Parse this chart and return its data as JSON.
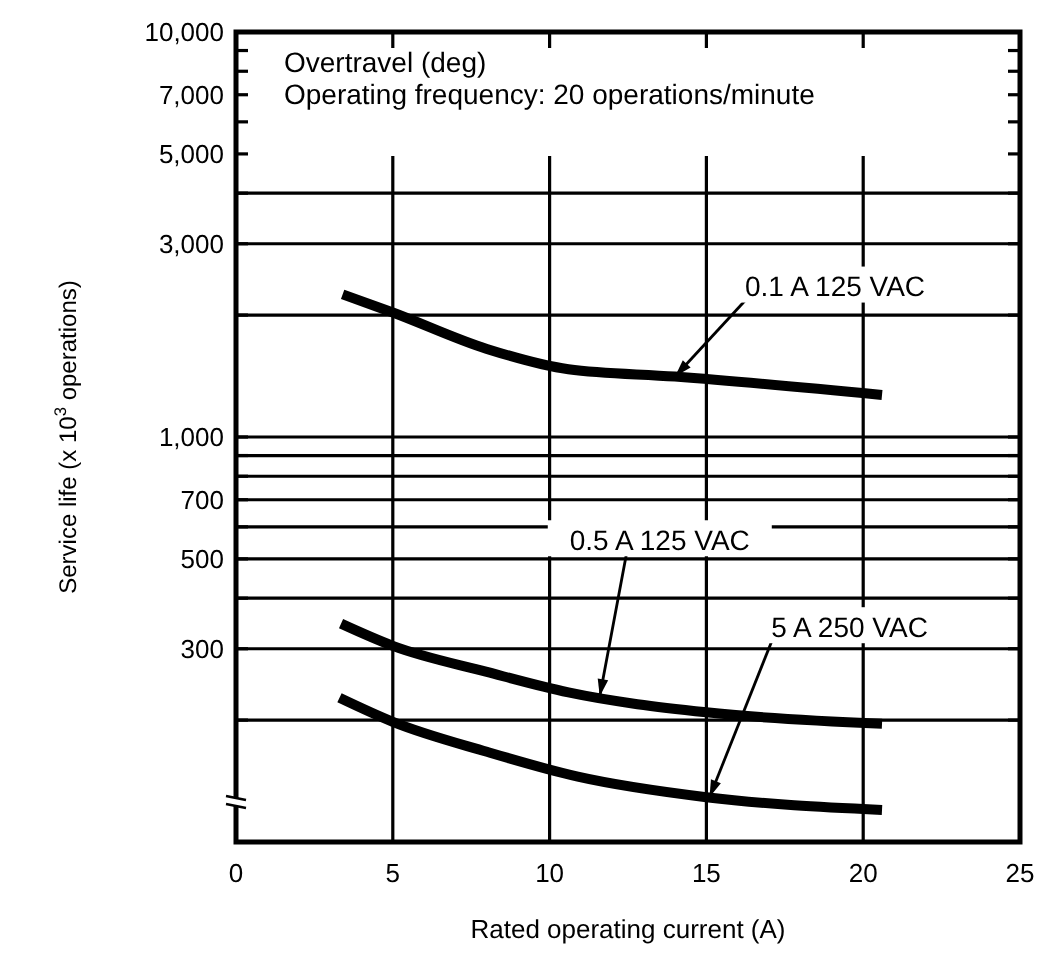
{
  "chart_data": {
    "type": "line",
    "xlabel": "Rated operating current (A)",
    "ylabel": "Service life (x 10$^{3}$ operations)",
    "log": "y",
    "grid": true,
    "marker": "none",
    "line_style": "solid",
    "xlim": [
      0,
      25
    ],
    "xticks": [
      0,
      5,
      10,
      15,
      20,
      25
    ],
    "ylim": [
      100,
      10000
    ],
    "yticks": [
      {
        "value": 200,
        "label": null
      },
      300,
      {
        "value": 400,
        "label": null
      },
      500,
      {
        "value": 600,
        "label": null
      },
      700,
      {
        "value": 800,
        "label": null
      },
      {
        "value": 900,
        "label": null
      },
      {
        "value": 1000,
        "label": "1,000"
      },
      {
        "value": 2000,
        "label": null
      },
      {
        "value": 3000,
        "label": "3,000"
      },
      {
        "value": 4000,
        "label": null
      },
      {
        "value": 5000,
        "label": "5,000"
      },
      {
        "value": 6000,
        "label": null
      },
      {
        "value": 7000,
        "label": "7,000"
      },
      {
        "value": 8000,
        "label": null
      },
      {
        "value": 9000,
        "label": null
      },
      {
        "value": 10000,
        "label": "10,000"
      }
    ],
    "series": [
      {
        "color": "#000000",
        "x": [
          3.4,
          5,
          8,
          10.6,
          14,
          20.6
        ],
        "values": [
          2250,
          2030,
          1650,
          1470,
          1410,
          1270
        ]
      },
      {
        "color": "#000000",
        "x": [
          3.35,
          5,
          8,
          10.6,
          15,
          20.6
        ],
        "values": [
          346,
          305,
          263,
          234,
          209,
          196
        ]
      },
      {
        "color": "#000000",
        "x": [
          3.3,
          5,
          8,
          10.9,
          15,
          20.6
        ],
        "values": [
          227,
          198,
          167,
          145,
          129,
          120
        ]
      }
    ],
    "annotations": [
      "Overtravel (deg)",
      "Operating frequency: 20 operations/minute",
      {
        "text": "0.1 A 125 VAC",
        "x": 14,
        "y": 1410
      },
      {
        "text": "0.5 A 125 VAC",
        "x": 11.6,
        "y": 229
      },
      {
        "text": "5 A 250 VAC",
        "x": 15.1,
        "y": 129
      }
    ]
  }
}
